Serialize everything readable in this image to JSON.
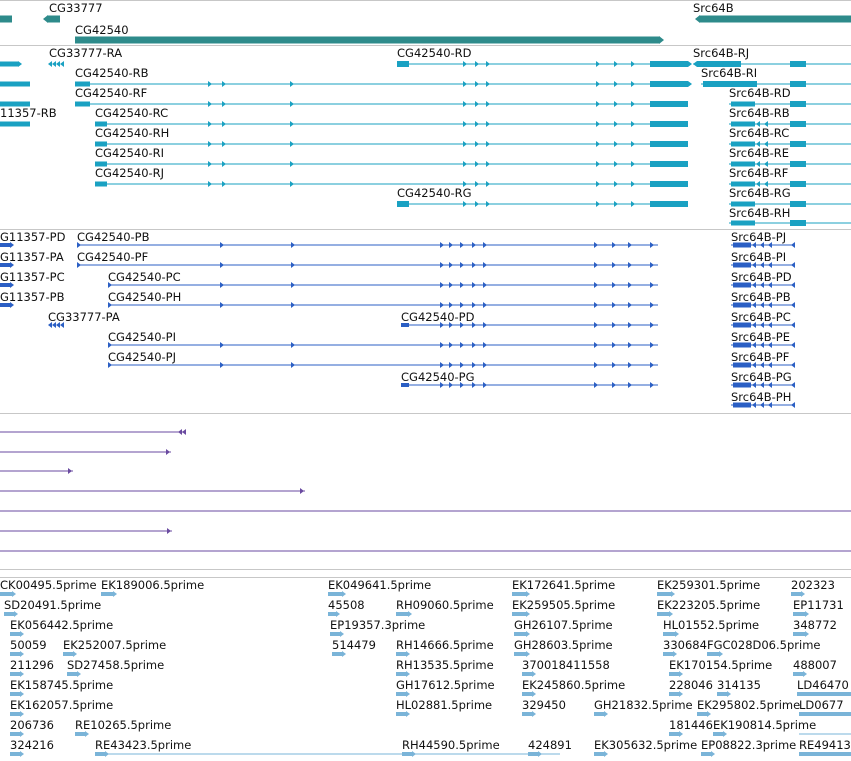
{
  "colors": {
    "gene": "#2e8b8b",
    "mrna": "#1aa1c2",
    "cds": "#2b5fc4",
    "est": "#6a4aa0",
    "read": "#7ab4d8",
    "separator": "#c7c7c7",
    "label": "#111111"
  },
  "tracks": {
    "genes": {
      "label_cg33777": "CG33777",
      "label_cg42540": "CG42540",
      "label_src64b": "Src64B"
    },
    "transcripts": {
      "labels": [
        "CG33777-RA",
        "CG42540-RD",
        "Src64B-RJ",
        "CG42540-RB",
        "Src64B-RI",
        "CG42540-RF",
        "Src64B-RD",
        "11357-RB",
        "CG42540-RC",
        "Src64B-RB",
        "CG42540-RH",
        "Src64B-RC",
        "CG42540-RI",
        "Src64B-RE",
        "CG42540-RJ",
        "Src64B-RF",
        "CG42540-RG",
        "Src64B-RG",
        "Src64B-RH"
      ]
    },
    "proteins": {
      "labels": [
        "G11357-PD",
        "CG42540-PB",
        "Src64B-PJ",
        "G11357-PA",
        "CG42540-PF",
        "Src64B-PI",
        "G11357-PC",
        "CG42540-PC",
        "Src64B-PD",
        "G11357-PB",
        "CG42540-PH",
        "Src64B-PB",
        "CG33777-PA",
        "CG42540-PD",
        "Src64B-PC",
        "CG42540-PI",
        "Src64B-PE",
        "CG42540-PJ",
        "Src64B-PF",
        "CG42540-PG",
        "Src64B-PG",
        "Src64B-PH"
      ]
    },
    "reads": {
      "labels": [
        "CK00495.5prime",
        "EK189006.5prime",
        "EK049641.5prime",
        "EK172641.5prime",
        "EK259301.5prime",
        "202323",
        "SD20491.5prime",
        "45508",
        "RH09060.5prime",
        "EK259505.5prime",
        "EK223205.5prime",
        "EP11731",
        "EK056442.5prime",
        "EP19357.3prime",
        "GH26107.5prime",
        "HL01552.5prime",
        "348772",
        "50059",
        "EK252007.5prime",
        "514479",
        "RH14666.5prime",
        "GH28603.5prime",
        "330684",
        "FGC028D06.5prime",
        "211296",
        "SD27458.5prime",
        "RH13535.5prime",
        "370018411558",
        "EK170154.5prime",
        "488007",
        "EK158745.5prime",
        "GH17612.5prime",
        "EK245860.5prime",
        "228046",
        "314135",
        "LD46470",
        "EK162057.5prime",
        "HL02881.5prime",
        "329450",
        "GH21832.5prime",
        "EK295802.5prime",
        "LD0677",
        "206736",
        "RE10265.5prime",
        "181446",
        "EK190814.5prime",
        "324216",
        "RE43423.5prime",
        "RH44590.5prime",
        "424891",
        "EK305632.5prime",
        "EP08822.3prime",
        "RE49413"
      ]
    }
  }
}
